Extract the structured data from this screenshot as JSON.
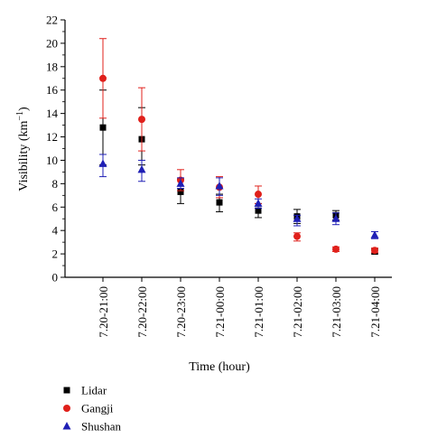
{
  "chart_data": {
    "type": "scatter",
    "title": "",
    "xlabel": "Time (hour)",
    "ylabel": "Visibility (km",
    "ylabel_sup": "−1",
    "ylabel_close": ")",
    "ylim": [
      0,
      22
    ],
    "yticks": [
      0,
      2,
      4,
      6,
      8,
      10,
      12,
      14,
      16,
      18,
      20,
      22
    ],
    "categories": [
      "7.20-21:00",
      "7.20-22:00",
      "7.20-23:00",
      "7.21-00:00",
      "7.21-01:00",
      "7.21-02:00",
      "7.21-03:00",
      "7.21-04:00"
    ],
    "grid": false,
    "legend_position": "bottom-left",
    "series": [
      {
        "name": "Lidar",
        "marker": "square",
        "color": "#000000",
        "values": [
          12.8,
          11.8,
          7.3,
          6.4,
          5.7,
          5.2,
          5.3,
          2.2
        ],
        "err_low": [
          9.6,
          9.6,
          6.3,
          5.6,
          5.1,
          4.6,
          4.9,
          2.0
        ],
        "err_high": [
          16.0,
          14.5,
          8.4,
          7.1,
          6.3,
          5.8,
          5.7,
          2.4
        ]
      },
      {
        "name": "Gangji",
        "marker": "circle",
        "color": "#e0201b",
        "values": [
          17.0,
          13.5,
          8.3,
          7.7,
          7.1,
          3.5,
          2.4,
          2.3
        ],
        "err_low": [
          13.6,
          10.8,
          7.4,
          6.8,
          6.3,
          3.1,
          2.2,
          2.1
        ],
        "err_high": [
          20.4,
          16.2,
          9.2,
          8.6,
          7.8,
          3.8,
          2.6,
          2.5
        ]
      },
      {
        "name": "Shushan",
        "marker": "triangle",
        "color": "#1f1fb5",
        "values": [
          9.7,
          9.2,
          8.0,
          7.8,
          6.3,
          5.0,
          5.0,
          3.6
        ],
        "err_low": [
          8.6,
          8.2,
          7.6,
          7.0,
          5.9,
          4.4,
          4.5,
          3.3
        ],
        "err_high": [
          10.5,
          10.0,
          8.5,
          8.5,
          6.7,
          5.3,
          5.5,
          3.9
        ]
      }
    ]
  }
}
